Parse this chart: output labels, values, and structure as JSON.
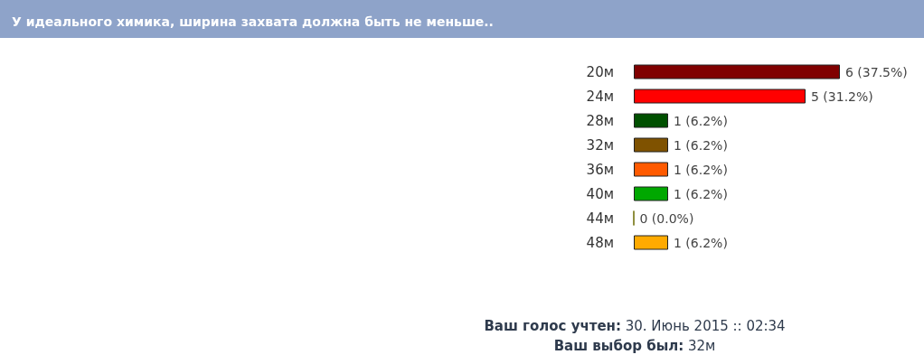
{
  "chart_data": {
    "type": "bar",
    "orientation": "horizontal",
    "title": "У идеального химика, ширина захвата должна быть не меньше..",
    "categories": [
      "20м",
      "24м",
      "28м",
      "32м",
      "36м",
      "40м",
      "44м",
      "48м"
    ],
    "values": [
      6,
      5,
      1,
      1,
      1,
      1,
      0,
      1
    ],
    "colors": [
      "#800000",
      "#ff0000",
      "#005000",
      "#7f5200",
      "#ff5a00",
      "#00a800",
      "#6b6b00",
      "#ffaa00"
    ],
    "value_labels": [
      "6 (37.5%)",
      "5 (31.2%)",
      "1 (6.2%)",
      "1 (6.2%)",
      "1 (6.2%)",
      "1 (6.2%)",
      "0 (0.0%)",
      "1 (6.2%)"
    ],
    "annotations": [
      "Ваш голос учтен: 30. Июнь 2015 :: 02:34",
      "Ваш выбор был: 32м"
    ],
    "grid": false
  }
}
